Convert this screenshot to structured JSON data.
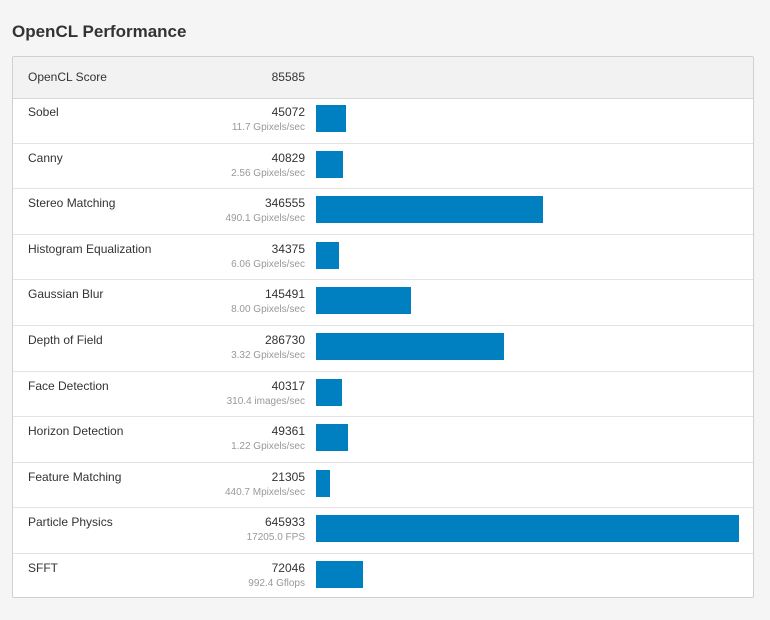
{
  "title": "OpenCL Performance",
  "score": {
    "label": "OpenCL Score",
    "value": "85585"
  },
  "colors": {
    "bar": "#0080c0"
  },
  "chart_data": {
    "type": "bar",
    "orientation": "horizontal",
    "xlim": [
      0,
      645933
    ],
    "categories": [
      "Sobel",
      "Canny",
      "Stereo Matching",
      "Histogram Equalization",
      "Gaussian Blur",
      "Depth of Field",
      "Face Detection",
      "Horizon Detection",
      "Feature Matching",
      "Particle Physics",
      "SFFT"
    ],
    "values": [
      45072,
      40829,
      346555,
      34375,
      145491,
      286730,
      40317,
      49361,
      21305,
      645933,
      72046
    ],
    "rows": [
      {
        "name": "Sobel",
        "score": "45072",
        "value": 45072,
        "unit": "11.7 Gpixels/sec"
      },
      {
        "name": "Canny",
        "score": "40829",
        "value": 40829,
        "unit": "2.56 Gpixels/sec"
      },
      {
        "name": "Stereo Matching",
        "score": "346555",
        "value": 346555,
        "unit": "490.1 Gpixels/sec"
      },
      {
        "name": "Histogram Equalization",
        "score": "34375",
        "value": 34375,
        "unit": "6.06 Gpixels/sec"
      },
      {
        "name": "Gaussian Blur",
        "score": "145491",
        "value": 145491,
        "unit": "8.00 Gpixels/sec"
      },
      {
        "name": "Depth of Field",
        "score": "286730",
        "value": 286730,
        "unit": "3.32 Gpixels/sec"
      },
      {
        "name": "Face Detection",
        "score": "40317",
        "value": 40317,
        "unit": "310.4 images/sec"
      },
      {
        "name": "Horizon Detection",
        "score": "49361",
        "value": 49361,
        "unit": "1.22 Gpixels/sec"
      },
      {
        "name": "Feature Matching",
        "score": "21305",
        "value": 21305,
        "unit": "440.7 Mpixels/sec"
      },
      {
        "name": "Particle Physics",
        "score": "645933",
        "value": 645933,
        "unit": "17205.0 FPS"
      },
      {
        "name": "SFFT",
        "score": "72046",
        "value": 72046,
        "unit": "992.4 Gflops"
      }
    ]
  }
}
